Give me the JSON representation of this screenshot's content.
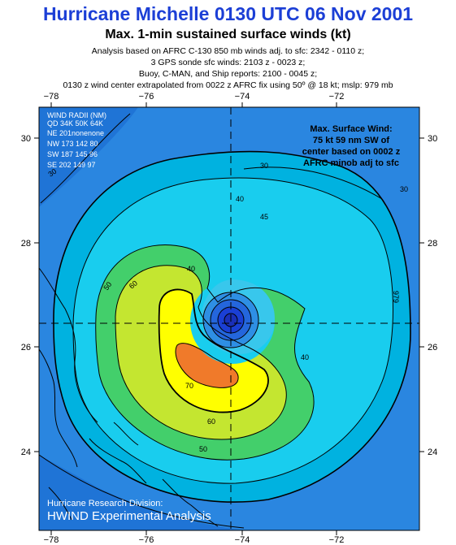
{
  "header": {
    "title": "Hurricane Michelle 0130 UTC 06 Nov 2001",
    "subtitle": "Max. 1-min sustained surface winds (kt)",
    "lines": [
      "Analysis based on AFRC C-130 850 mb winds adj. to sfc: 2342 - 0110 z;",
      "3 GPS sonde sfc winds: 2103 z - 0023 z;",
      "Buoy, C-MAN, and Ship reports: 2100 - 0045 z;",
      "0130 z wind center extrapolated from 0022 z AFRC fix using 50º @ 18 kt; mslp: 979 mb"
    ]
  },
  "axes": {
    "lon_ticks": [
      "−78",
      "−76",
      "−74",
      "−72"
    ],
    "lat_ticks": [
      "30",
      "28",
      "26",
      "24"
    ]
  },
  "wind_radii": {
    "header": [
      "WIND RADII (NM)",
      "QD 34K 50K 64K"
    ],
    "rows": [
      "NE 201nonenone",
      "NW 173 142  80",
      "SW 187 145  96",
      "SE 202 149  97"
    ]
  },
  "max_wind_box": [
    "Max. Surface Wind:",
    "75 kt 59 nm SW of",
    "center based on  0002 z",
    "AFRC minob adj to sfc"
  ],
  "contour_labels": [
    "30",
    "30",
    "30",
    "40",
    "40",
    "40",
    "45",
    "50",
    "50",
    "60",
    "60",
    "70",
    "979"
  ],
  "footer": {
    "division": "Hurricane Research Division:",
    "product": "HWIND Experimental Analysis"
  },
  "colors": {
    "title": "#1c3fd6",
    "band_30": "#00b8e6",
    "band_40": "#19d4f0",
    "band_50": "#44d16a",
    "band_60": "#c9e832",
    "band_70": "#ffff00",
    "band_75": "#f07a2a",
    "center": "#1a2fd4"
  }
}
